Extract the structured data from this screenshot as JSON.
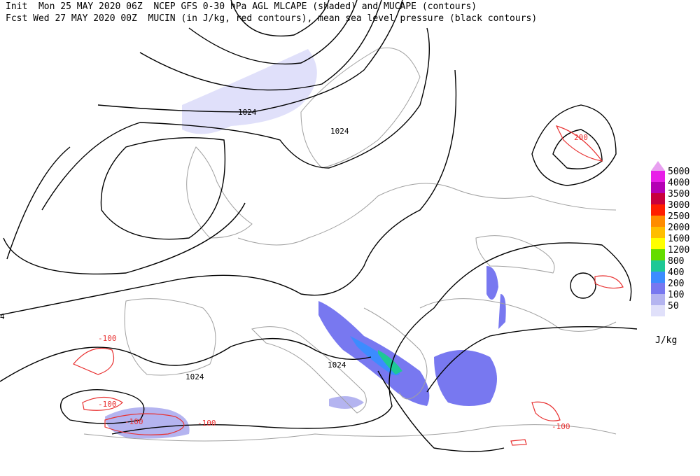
{
  "header": {
    "line1": "Init  Mon 25 MAY 2020 06Z  NCEP GFS 0-30 hPa AGL MLCAPE (shaded) and MUCAPE (contours)",
    "line2": "Fcst Wed 27 MAY 2020 00Z  MUCIN (in J/kg, red contours), mean sea level pressure (black contours)"
  },
  "legend": {
    "levels": [
      {
        "label": "5000",
        "color": "#e81ee8"
      },
      {
        "label": "4000",
        "color": "#b400b4"
      },
      {
        "label": "3500",
        "color": "#c8003c"
      },
      {
        "label": "3000",
        "color": "#ff1e00"
      },
      {
        "label": "2500",
        "color": "#ff8c00"
      },
      {
        "label": "2000",
        "color": "#ffbe00"
      },
      {
        "label": "1600",
        "color": "#ffff00"
      },
      {
        "label": "1200",
        "color": "#64dc00"
      },
      {
        "label": "800",
        "color": "#1ec896"
      },
      {
        "label": "400",
        "color": "#3c8cff"
      },
      {
        "label": "200",
        "color": "#7878f0"
      },
      {
        "label": "100",
        "color": "#b4b4f0"
      },
      {
        "label": "50",
        "color": "#e0e0fa"
      }
    ],
    "top_color": "#e8a0f0",
    "unit": "J/kg"
  },
  "contour_labels": [
    "1024",
    "1024",
    "1024",
    "1024",
    "200",
    "-100",
    "-100",
    "-100",
    "-100",
    "-100",
    "4"
  ]
}
